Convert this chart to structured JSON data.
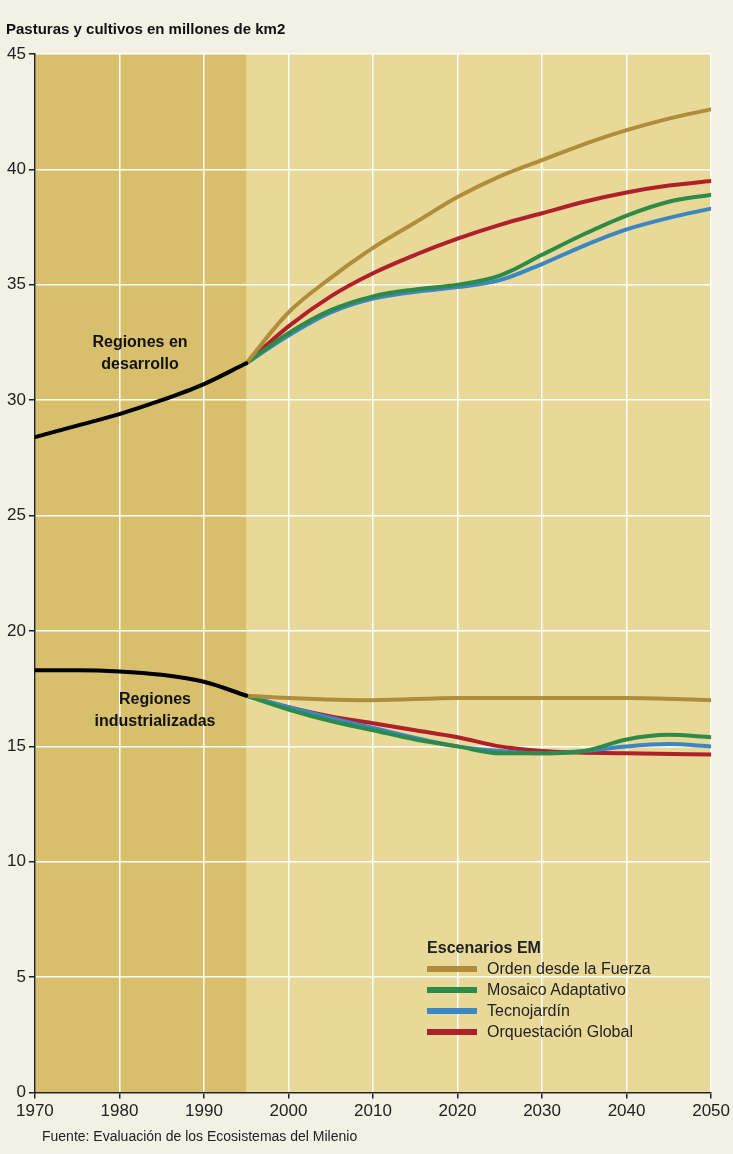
{
  "chart_data": {
    "type": "line",
    "title": "Pasturas y cultivos en millones de km2",
    "xlim": [
      1970,
      2050
    ],
    "xticks": [
      1970,
      1980,
      1990,
      2000,
      2010,
      2020,
      2030,
      2040,
      2050
    ],
    "ylim": [
      0,
      45
    ],
    "yticks": [
      0,
      5,
      10,
      15,
      20,
      25,
      30,
      35,
      40,
      45
    ],
    "grid": true,
    "legend": "bottom right",
    "legend_title": "Escenarios EM",
    "marker": "none",
    "line_style": "solid",
    "bands": [
      {
        "axis": "x",
        "from": 1970,
        "to": 1995,
        "color": "#d8bf6c"
      }
    ],
    "annotations": [
      "Regiones en\ndesarrollo",
      "Regiones\nindustrializadas",
      "Fuente: Evaluación de los Ecosistemas del Milenio"
    ],
    "series": [
      {
        "color": "#000000",
        "x": [
          1970,
          1975,
          1980,
          1985,
          1990,
          1995
        ],
        "values": [
          28.4,
          28.9,
          29.4,
          30.0,
          30.7,
          31.6
        ]
      },
      {
        "color": "#000000",
        "x": [
          1970,
          1975,
          1980,
          1985,
          1990,
          1995
        ],
        "values": [
          18.3,
          18.3,
          18.25,
          18.1,
          17.8,
          17.2
        ]
      },
      {
        "name": "Orden desde la Fuerza",
        "color": "#b08d3a",
        "x": [
          1995,
          2000,
          2005,
          2010,
          2015,
          2020,
          2025,
          2030,
          2035,
          2040,
          2045,
          2050
        ],
        "values": [
          31.6,
          33.8,
          35.3,
          36.6,
          37.7,
          38.8,
          39.7,
          40.4,
          41.1,
          41.7,
          42.2,
          42.6
        ]
      },
      {
        "name": "Mosaico Adaptativo",
        "color": "#2e8b47",
        "x": [
          1995,
          2000,
          2005,
          2010,
          2015,
          2020,
          2025,
          2030,
          2035,
          2040,
          2045,
          2050
        ],
        "values": [
          31.6,
          32.9,
          33.9,
          34.5,
          34.8,
          35.0,
          35.4,
          36.3,
          37.2,
          38.0,
          38.6,
          38.9
        ]
      },
      {
        "name": "Tecnojardín",
        "color": "#3b86c4",
        "x": [
          1995,
          2000,
          2005,
          2010,
          2015,
          2020,
          2025,
          2030,
          2035,
          2040,
          2045,
          2050
        ],
        "values": [
          31.6,
          32.8,
          33.8,
          34.4,
          34.7,
          34.9,
          35.2,
          35.9,
          36.7,
          37.4,
          37.9,
          38.3
        ]
      },
      {
        "name": "Orquestación Global",
        "color": "#b0202a",
        "x": [
          1995,
          2000,
          2005,
          2010,
          2015,
          2020,
          2025,
          2030,
          2035,
          2040,
          2045,
          2050
        ],
        "values": [
          31.6,
          33.2,
          34.5,
          35.5,
          36.3,
          37.0,
          37.6,
          38.1,
          38.6,
          39.0,
          39.3,
          39.5
        ]
      },
      {
        "color": "#b08d3a",
        "x": [
          1995,
          2000,
          2010,
          2020,
          2030,
          2040,
          2050
        ],
        "values": [
          17.2,
          17.1,
          17.0,
          17.1,
          17.1,
          17.1,
          17.0
        ]
      },
      {
        "color": "#2e8b47",
        "x": [
          1995,
          2000,
          2005,
          2010,
          2015,
          2020,
          2025,
          2030,
          2035,
          2040,
          2045,
          2050
        ],
        "values": [
          17.2,
          16.6,
          16.1,
          15.7,
          15.3,
          15.0,
          14.7,
          14.7,
          14.8,
          15.3,
          15.5,
          15.4
        ]
      },
      {
        "color": "#3b86c4",
        "x": [
          1995,
          2000,
          2010,
          2020,
          2025,
          2030,
          2035,
          2040,
          2045,
          2050
        ],
        "values": [
          17.2,
          16.7,
          15.8,
          15.0,
          14.8,
          14.7,
          14.8,
          15.0,
          15.1,
          15.0
        ]
      },
      {
        "color": "#b0202a",
        "x": [
          1995,
          2000,
          2005,
          2010,
          2015,
          2020,
          2025,
          2030,
          2040,
          2050
        ],
        "values": [
          17.2,
          16.7,
          16.3,
          16.0,
          15.7,
          15.4,
          15.0,
          14.8,
          14.7,
          14.65
        ]
      }
    ]
  }
}
